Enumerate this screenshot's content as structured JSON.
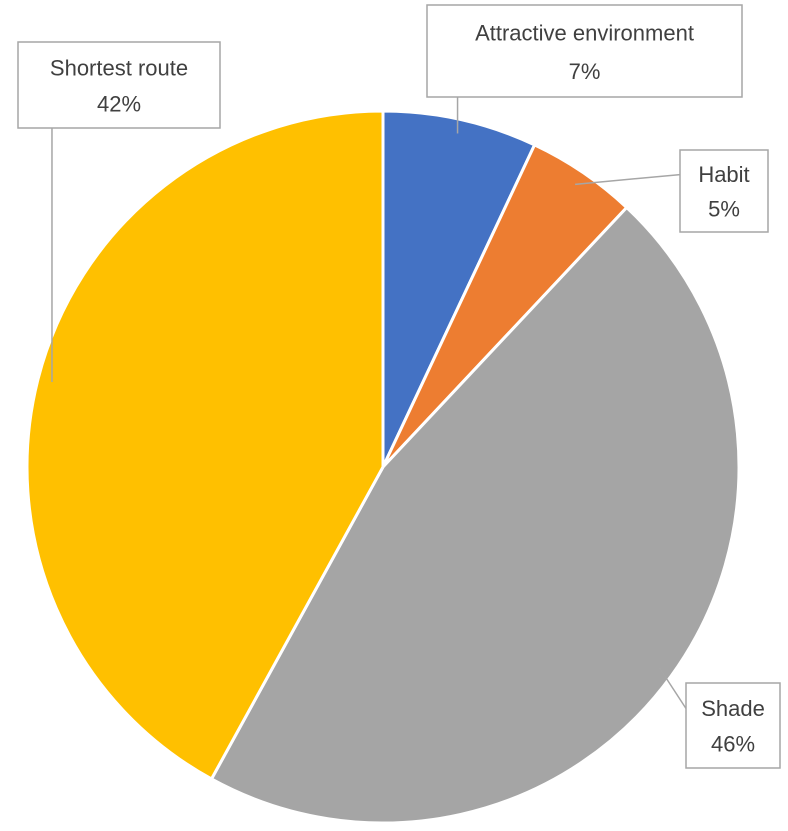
{
  "chart_data": {
    "type": "pie",
    "categories": [
      "Attractive environment",
      "Habit",
      "Shade",
      "Shortest route"
    ],
    "values": [
      7,
      5,
      46,
      42
    ],
    "value_labels": [
      "7%",
      "5%",
      "46%",
      "42%"
    ],
    "colors": [
      "#4472c4",
      "#ed7d31",
      "#a5a5a5",
      "#ffc000"
    ]
  }
}
